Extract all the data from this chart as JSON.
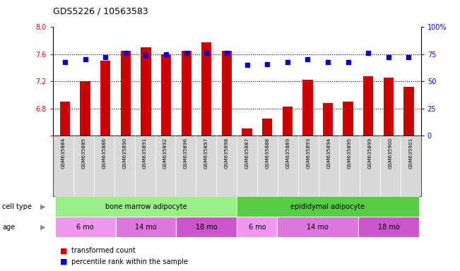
{
  "title": "GDS5226 / 10563583",
  "samples": [
    "GSM635884",
    "GSM635885",
    "GSM635886",
    "GSM635890",
    "GSM635891",
    "GSM635892",
    "GSM635896",
    "GSM635897",
    "GSM635898",
    "GSM635887",
    "GSM635888",
    "GSM635889",
    "GSM635893",
    "GSM635894",
    "GSM635895",
    "GSM635899",
    "GSM635900",
    "GSM635901"
  ],
  "bar_values": [
    6.9,
    7.2,
    7.5,
    7.65,
    7.7,
    7.6,
    7.65,
    7.78,
    7.65,
    6.5,
    6.65,
    6.83,
    7.22,
    6.88,
    6.9,
    7.28,
    7.25,
    7.12
  ],
  "dot_values": [
    68,
    70,
    72,
    76,
    74,
    75,
    76,
    76,
    76,
    65,
    66,
    68,
    70,
    68,
    68,
    76,
    72,
    72
  ],
  "ylim_left": [
    6.4,
    8.0
  ],
  "ylim_right": [
    0,
    100
  ],
  "yticks_left": [
    6.4,
    6.8,
    7.2,
    7.6,
    8.0
  ],
  "yticks_right": [
    0,
    25,
    50,
    75,
    100
  ],
  "bar_color": "#cc0000",
  "dot_color": "#0000cc",
  "cell_type_labels": [
    "bone marrow adipocyte",
    "epididymal adipocyte"
  ],
  "cell_type_starts": [
    0,
    9
  ],
  "cell_type_ends": [
    8,
    17
  ],
  "cell_type_colors": [
    "#99ee88",
    "#55cc44"
  ],
  "age_group_labels": [
    "6 mo",
    "14 mo",
    "18 mo",
    "6 mo",
    "14 mo",
    "18 mo"
  ],
  "age_group_starts": [
    0,
    3,
    6,
    9,
    11,
    15
  ],
  "age_group_ends": [
    2,
    5,
    8,
    10,
    14,
    17
  ],
  "age_group_colors": [
    "#ee99ee",
    "#dd77dd",
    "#cc55cc",
    "#ee99ee",
    "#dd77dd",
    "#cc55cc"
  ],
  "legend_bar_label": "transformed count",
  "legend_dot_label": "percentile rank within the sample",
  "bg_color": "#ffffff"
}
